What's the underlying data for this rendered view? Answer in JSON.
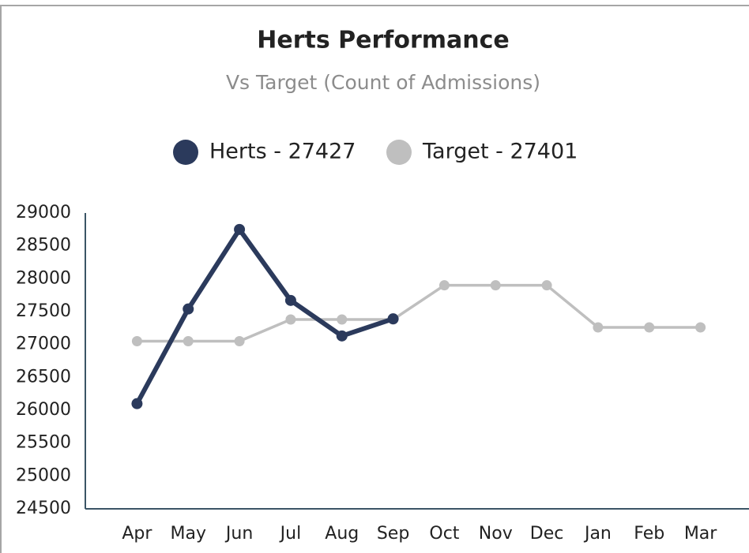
{
  "chart_data": {
    "type": "line",
    "title": "Herts Performance",
    "subtitle": "Vs Target (Count of Admissions)",
    "categories": [
      "Apr",
      "May",
      "Jun",
      "Jul",
      "Aug",
      "Sep",
      "Oct",
      "Nov",
      "Dec",
      "Jan",
      "Feb",
      "Mar"
    ],
    "series": [
      {
        "name": "Herts - 27427",
        "color": "#2b3a5c",
        "values": [
          26100,
          27540,
          28750,
          27670,
          27130,
          27390,
          null,
          null,
          null,
          null,
          null,
          null
        ]
      },
      {
        "name": "Target - 27401",
        "color": "#bfbfbf",
        "values": [
          27050,
          27050,
          27050,
          27380,
          27380,
          27380,
          27900,
          27900,
          27900,
          27260,
          27260,
          27260
        ]
      }
    ],
    "ylim": [
      24500,
      29000
    ],
    "yticks": [
      24500,
      25000,
      25500,
      26000,
      26500,
      27000,
      27500,
      28000,
      28500,
      29000
    ],
    "grid": false,
    "legend": "top"
  }
}
